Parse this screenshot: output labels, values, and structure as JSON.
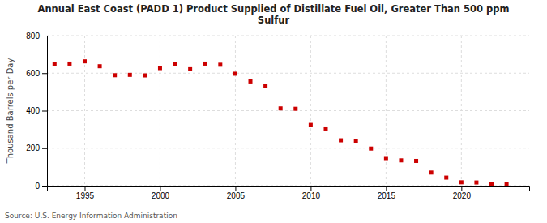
{
  "chart_data": {
    "type": "scatter",
    "title": "Annual East Coast (PADD 1) Product Supplied of Distillate Fuel Oil, Greater Than 500 ppm\nSulfur",
    "y_label": "Thousand Barrels per Day",
    "annotations": [
      "Source: U.S. Energy Information Administration"
    ],
    "x": [
      1993,
      1994,
      1995,
      1996,
      1997,
      1998,
      1999,
      2000,
      2001,
      2002,
      2003,
      2004,
      2005,
      2006,
      2007,
      2008,
      2009,
      2010,
      2011,
      2012,
      2013,
      2014,
      2015,
      2016,
      2017,
      2018,
      2019,
      2020,
      2021,
      2022,
      2023
    ],
    "values": [
      648,
      651,
      663,
      637,
      589,
      591,
      588,
      627,
      648,
      621,
      651,
      645,
      597,
      556,
      532,
      412,
      410,
      324,
      305,
      242,
      240,
      198,
      147,
      135,
      132,
      70,
      43,
      18,
      17,
      10,
      8
    ],
    "color": "#cc0000",
    "marker": "square",
    "xlim": [
      1992.5,
      2024.5
    ],
    "ylim": [
      0,
      800
    ],
    "xticks": [
      1995,
      2000,
      2005,
      2010,
      2015,
      2020
    ],
    "yticks": [
      0,
      200,
      400,
      600,
      800
    ],
    "grid": true
  }
}
